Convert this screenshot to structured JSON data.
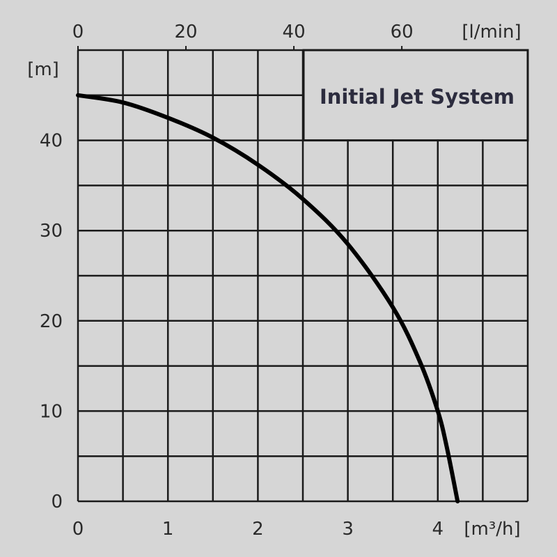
{
  "colors": {
    "background": "#d6d6d6",
    "plot_background": "#d6d6d6",
    "grid": "#1a1a1a",
    "curve": "#000000",
    "text": "#2a2a2a"
  },
  "chart_data": {
    "type": "line",
    "title": "Initial Jet System",
    "xlabel": "[m³/h]",
    "x2label": "[l/min]",
    "ylabel": "[m]",
    "xlim": [
      0,
      5
    ],
    "ylim": [
      0,
      50
    ],
    "x_ticks": [
      0,
      1,
      2,
      3,
      4
    ],
    "x2_ticks": [
      0,
      20,
      40,
      60
    ],
    "y_ticks": [
      0,
      10,
      20,
      30,
      40
    ],
    "grid": true,
    "series": [
      {
        "x": [
          0,
          0.5,
          1.0,
          1.5,
          2.0,
          2.5,
          3.0,
          3.5,
          3.8,
          4.0,
          4.1,
          4.22
        ],
        "y": [
          45,
          44.2,
          42.5,
          40.3,
          37.3,
          33.5,
          28.5,
          21.5,
          15.5,
          10.0,
          6.0,
          0
        ]
      }
    ]
  }
}
